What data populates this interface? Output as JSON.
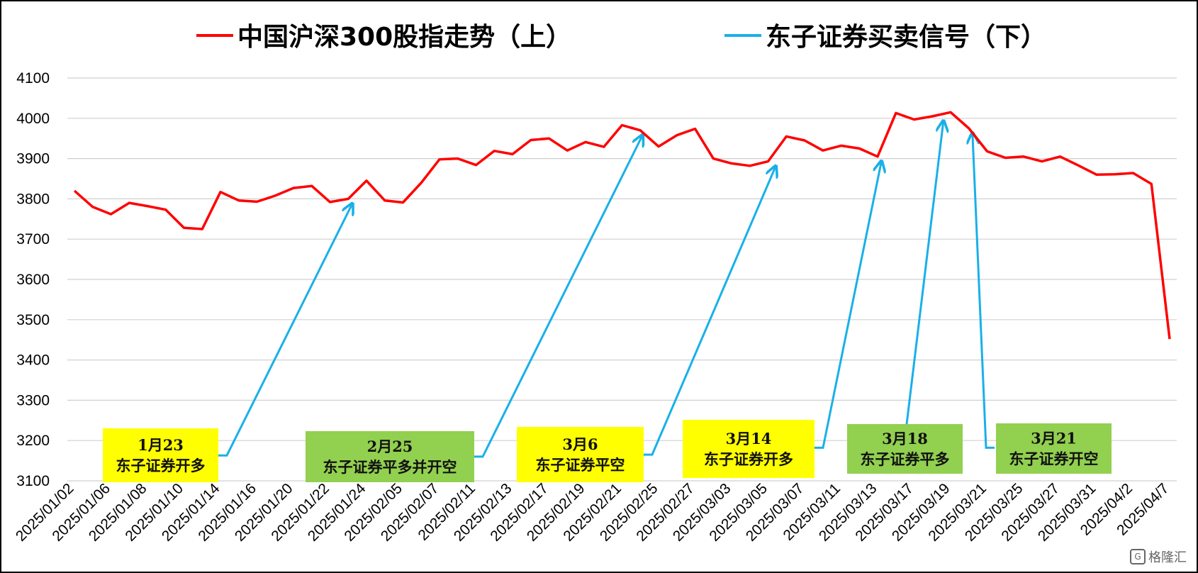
{
  "chart_data": {
    "type": "line",
    "ylim": [
      3100,
      4100
    ],
    "y_ticks": [
      3100,
      3200,
      3300,
      3400,
      3500,
      3600,
      3700,
      3800,
      3900,
      4000,
      4100
    ],
    "grid": true,
    "legend": [
      {
        "label": "中国沪深300股指走势（上）",
        "color": "#ff0000"
      },
      {
        "label": "东子证券买卖信号（下）",
        "color": "#19b0e8"
      }
    ],
    "x_tick_labels": [
      "2025/01/02",
      "2025/01/06",
      "2025/01/08",
      "2025/01/10",
      "2025/01/14",
      "2025/01/16",
      "2025/01/20",
      "2025/01/22",
      "2025/01/24",
      "2025/02/05",
      "2025/02/07",
      "2025/02/11",
      "2025/02/13",
      "2025/02/17",
      "2025/02/19",
      "2025/02/21",
      "2025/02/25",
      "2025/02/27",
      "2025/03/03",
      "2025/03/05",
      "2025/03/07",
      "2025/03/11",
      "2025/03/13",
      "2025/03/17",
      "2025/03/19",
      "2025/03/21",
      "2025/03/25",
      "2025/03/27",
      "2025/03/31",
      "2025/04/2",
      "2025/04/7"
    ],
    "series": [
      {
        "name": "中国沪深300股指走势（上）",
        "color": "#ff0000",
        "values": [
          3820,
          3780,
          3762,
          3790,
          3782,
          3773,
          3728,
          3725,
          3817,
          3796,
          3793,
          3808,
          3827,
          3832,
          3792,
          3800,
          3845,
          3796,
          3791,
          3840,
          3898,
          3900,
          3884,
          3919,
          3911,
          3946,
          3950,
          3920,
          3941,
          3929,
          3983,
          3970,
          3930,
          3958,
          3974,
          3900,
          3888,
          3882,
          3893,
          3955,
          3945,
          3920,
          3932,
          3925,
          3905,
          4013,
          3997,
          4005,
          4015,
          3975,
          3918,
          3902,
          3905,
          3893,
          3905,
          3883,
          3860,
          3861,
          3864,
          3837,
          3452
        ]
      }
    ],
    "signals": [
      {
        "date": "1月23",
        "text": "东子证券开多",
        "box_color": "#ffff00",
        "start_value": 3163,
        "target_value": 3800
      },
      {
        "date": "2月25",
        "text": "东子证券平多并开空",
        "box_color": "#92d050",
        "start_value": 3160,
        "target_value": 3970
      },
      {
        "date": "3月6",
        "text": "东子证券平空",
        "box_color": "#ffff00",
        "start_value": 3165,
        "target_value": 3893
      },
      {
        "date": "3月14",
        "text": "东子证券开多",
        "box_color": "#ffff00",
        "start_value": 3182,
        "target_value": 3905
      },
      {
        "date": "3月18",
        "text": "东子证券平多",
        "box_color": "#92d050",
        "start_value": 3226,
        "target_value": 4005
      },
      {
        "date": "3月21",
        "text": "东子证券开空",
        "box_color": "#92d050",
        "start_value": 3182,
        "target_value": 3975
      }
    ]
  },
  "watermark": "格隆汇"
}
